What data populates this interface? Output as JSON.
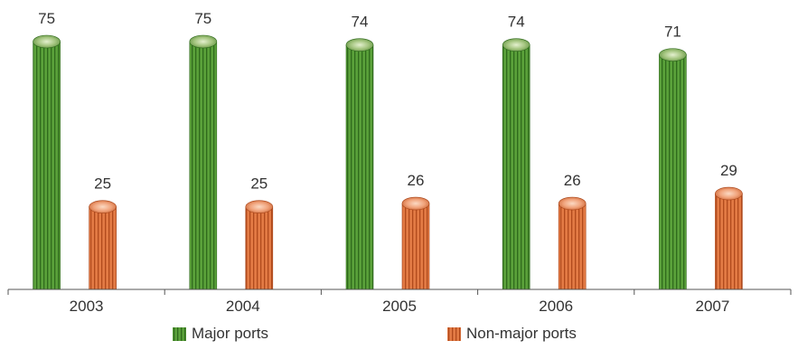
{
  "chart_data": {
    "type": "bar",
    "title": "",
    "xlabel": "",
    "ylabel": "",
    "categories": [
      "2003",
      "2004",
      "2005",
      "2006",
      "2007"
    ],
    "series": [
      {
        "name": "Major ports",
        "values": [
          75,
          75,
          74,
          74,
          71
        ],
        "color": "#5aa13a"
      },
      {
        "name": "Non-major ports",
        "values": [
          25,
          25,
          26,
          26,
          29
        ],
        "color": "#e0703a"
      }
    ],
    "ylim": [
      0,
      75
    ],
    "grid": false,
    "legend_position": "bottom"
  }
}
